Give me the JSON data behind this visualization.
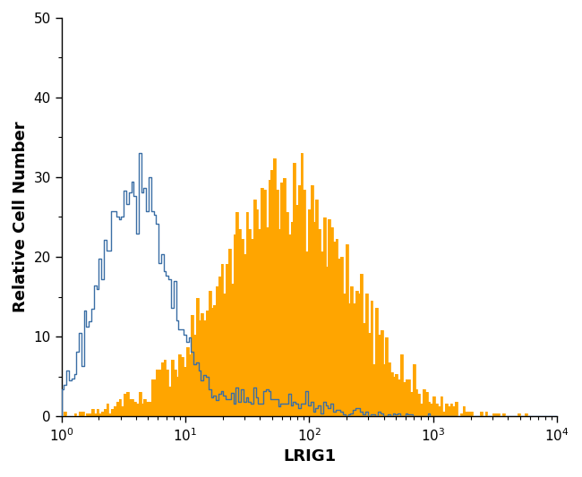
{
  "title": "",
  "xlabel": "LRIG1",
  "ylabel": "Relative Cell Number",
  "xlim_log": [
    1,
    10000
  ],
  "ylim": [
    0,
    50
  ],
  "yticks": [
    0,
    10,
    20,
    30,
    40,
    50
  ],
  "xticks_log": [
    1,
    10,
    100,
    1000,
    10000
  ],
  "blue_color": "#3A6EA5",
  "orange_color": "#FFA500",
  "background_color": "#FFFFFF",
  "xlabel_fontsize": 13,
  "ylabel_fontsize": 13,
  "tick_fontsize": 11,
  "blue_seed": 42,
  "orange_seed": 99,
  "n_bins": 200
}
